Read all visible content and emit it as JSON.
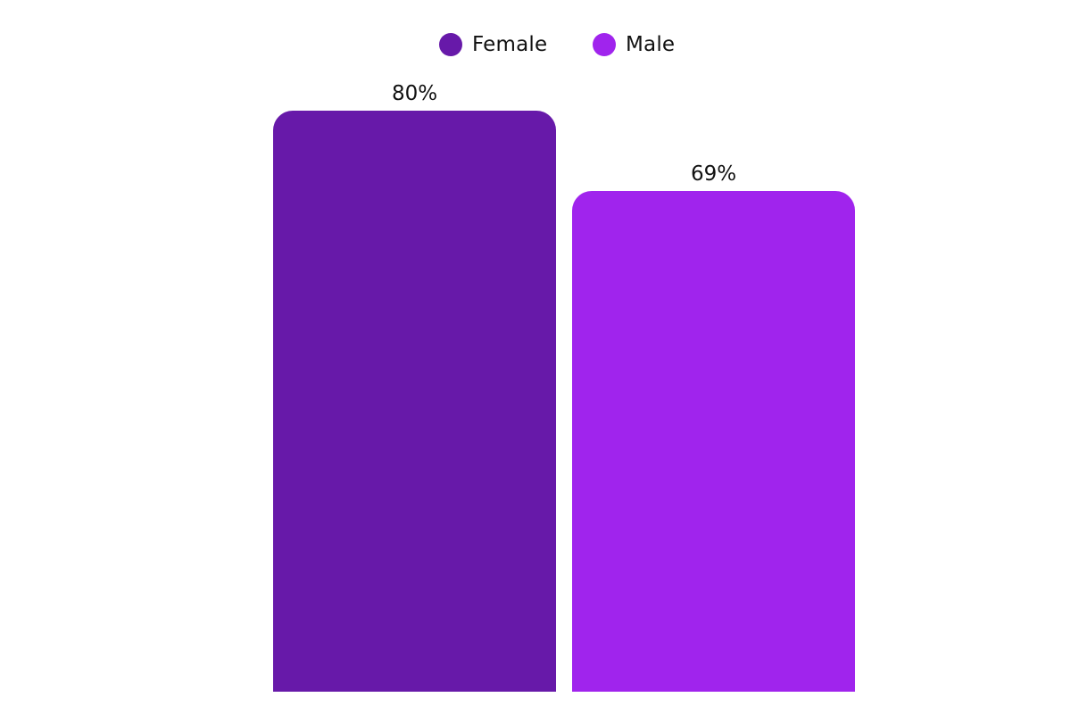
{
  "chart_data": {
    "type": "bar",
    "title": "",
    "xlabel": "",
    "ylabel": "",
    "categories": [
      "Female",
      "Male"
    ],
    "values": [
      80,
      69
    ],
    "value_labels": [
      "80%",
      "69%"
    ],
    "unit": "%",
    "colors": [
      "#6719A9",
      "#A024ED"
    ],
    "ylim": [
      0,
      100
    ],
    "grid": false,
    "legend_position": "top",
    "axes_visible": false
  },
  "legend": {
    "items": [
      {
        "label": "Female",
        "color": "#6719A9"
      },
      {
        "label": "Male",
        "color": "#A024ED"
      }
    ]
  },
  "bars": [
    {
      "category": "Female",
      "value_label": "80%",
      "color": "#6719A9"
    },
    {
      "category": "Male",
      "value_label": "69%",
      "color": "#A024ED"
    }
  ]
}
